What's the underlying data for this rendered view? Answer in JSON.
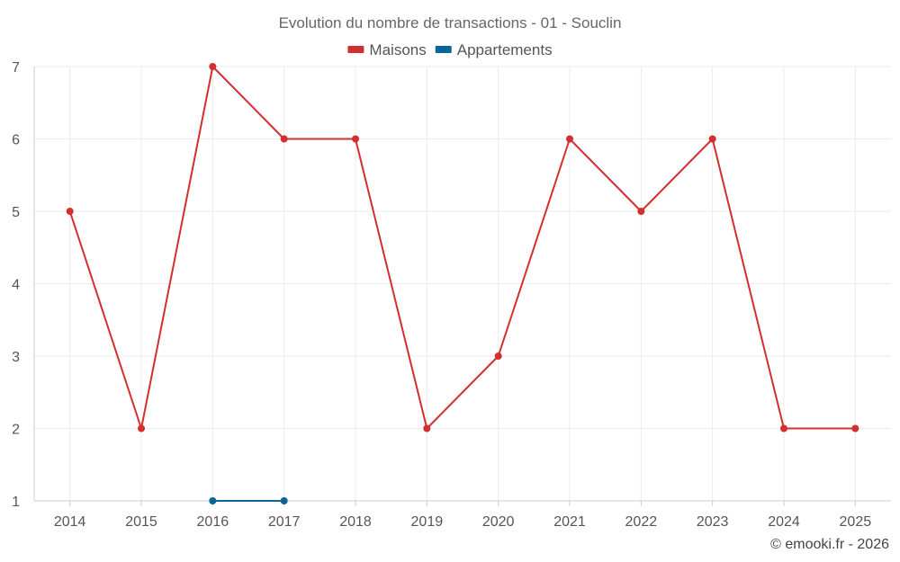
{
  "chart_data": {
    "type": "line",
    "title": "Evolution du nombre de transactions - 01 - Souclin",
    "categories": [
      "2014",
      "2015",
      "2016",
      "2017",
      "2018",
      "2019",
      "2020",
      "2021",
      "2022",
      "2023",
      "2024",
      "2025"
    ],
    "ylim": [
      1,
      7
    ],
    "yticks": [
      1,
      2,
      3,
      4,
      5,
      6,
      7
    ],
    "xlabel": "",
    "ylabel": "",
    "legend_position": "top-center",
    "grid": true,
    "series": [
      {
        "name": "Maisons",
        "color": "#d32f2f",
        "values": [
          5,
          2,
          7,
          6,
          6,
          2,
          3,
          6,
          5,
          6,
          2,
          2
        ]
      },
      {
        "name": "Appartements",
        "color": "#0b6597",
        "values": [
          null,
          null,
          1,
          1,
          null,
          null,
          null,
          null,
          null,
          null,
          null,
          null
        ]
      }
    ]
  },
  "credit": "© emooki.fr - 2026"
}
